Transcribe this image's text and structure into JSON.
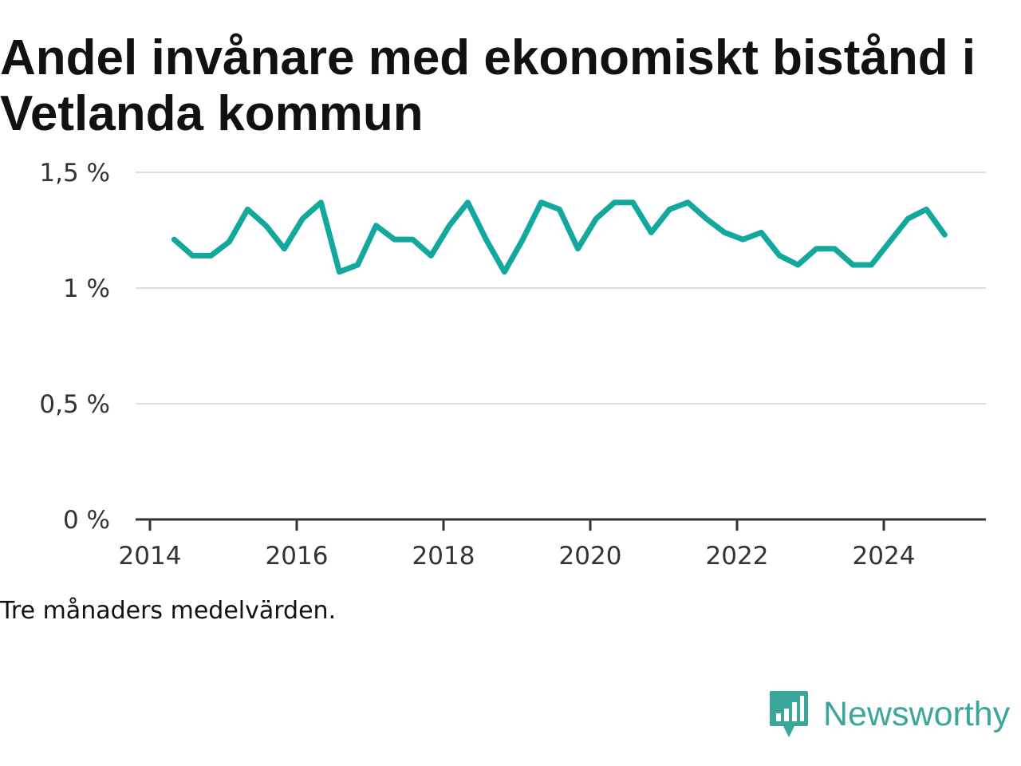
{
  "title": "Andel invånare med ekonomiskt bistånd i Vetlanda kommun",
  "note": "Tre månaders medelvärden.",
  "brand": {
    "name": "Newsworthy",
    "icon": "newsworthy-logo-icon"
  },
  "colors": {
    "line": "#13a89e",
    "grid": "#dddddd",
    "axis": "#333333",
    "brand": "#3aa79a"
  },
  "chart_data": {
    "type": "line",
    "title": "Andel invånare med ekonomiskt bistånd i Vetlanda kommun",
    "xlabel": "",
    "ylabel": "",
    "ylim": [
      0,
      1.5
    ],
    "xlim": [
      2014,
      2025.4
    ],
    "grid": true,
    "y_ticks": [
      {
        "value": 0,
        "label": "0 %"
      },
      {
        "value": 0.5,
        "label": "0,5 %"
      },
      {
        "value": 1,
        "label": "1 %"
      },
      {
        "value": 1.5,
        "label": "1,5 %"
      }
    ],
    "x_ticks": [
      {
        "value": 2014,
        "label": "2014"
      },
      {
        "value": 2016,
        "label": "2016"
      },
      {
        "value": 2018,
        "label": "2018"
      },
      {
        "value": 2020,
        "label": "2020"
      },
      {
        "value": 2022,
        "label": "2022"
      },
      {
        "value": 2024,
        "label": "2024"
      }
    ],
    "series": [
      {
        "x": [
          2014.33,
          2014.58,
          2014.83,
          2015.08,
          2015.33,
          2015.58,
          2015.83,
          2016.08,
          2016.33,
          2016.58,
          2016.83,
          2017.08,
          2017.33,
          2017.58,
          2017.83,
          2018.08,
          2018.33,
          2018.58,
          2018.83,
          2019.08,
          2019.33,
          2019.58,
          2019.83,
          2020.08,
          2020.33,
          2020.58,
          2020.83,
          2021.08,
          2021.33,
          2021.58,
          2021.83,
          2022.08,
          2022.33,
          2022.58,
          2022.83,
          2023.08,
          2023.33,
          2023.58,
          2023.83,
          2024.08,
          2024.33,
          2024.58,
          2024.83
        ],
        "y": [
          1.21,
          1.14,
          1.14,
          1.2,
          1.34,
          1.27,
          1.17,
          1.3,
          1.37,
          1.07,
          1.1,
          1.27,
          1.21,
          1.21,
          1.14,
          1.27,
          1.37,
          1.21,
          1.07,
          1.21,
          1.37,
          1.34,
          1.17,
          1.3,
          1.37,
          1.37,
          1.24,
          1.34,
          1.37,
          1.3,
          1.24,
          1.21,
          1.24,
          1.14,
          1.1,
          1.17,
          1.17,
          1.1,
          1.1,
          1.2,
          1.3,
          1.34,
          1.23
        ]
      }
    ]
  }
}
